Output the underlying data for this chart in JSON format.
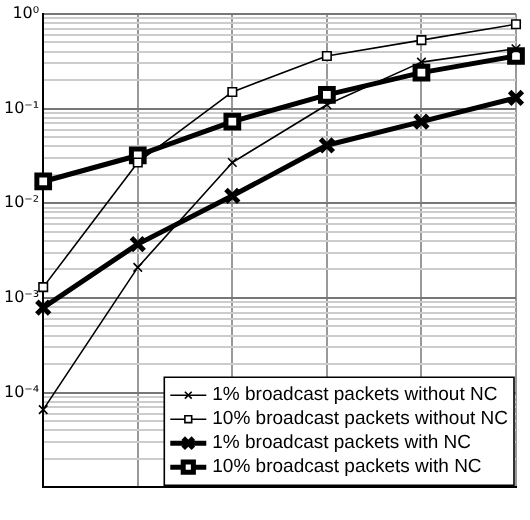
{
  "chart_data": {
    "type": "line",
    "log": "y",
    "categories": [
      null,
      null,
      null,
      null,
      null,
      null
    ],
    "ylim": [
      1e-05,
      1
    ],
    "yticks": [
      {
        "value": 1e-05,
        "label": null
      },
      {
        "value": 2e-05,
        "label": null
      },
      {
        "value": 3e-05,
        "label": null
      },
      {
        "value": 4e-05,
        "label": null
      },
      {
        "value": 5e-05,
        "label": null
      },
      {
        "value": 6e-05,
        "label": null
      },
      {
        "value": 7e-05,
        "label": null
      },
      {
        "value": 8e-05,
        "label": null
      },
      {
        "value": 9e-05,
        "label": null
      },
      {
        "value": 0.0001,
        "label": "10⁻⁴"
      },
      {
        "value": 0.0002,
        "label": null
      },
      {
        "value": 0.0003,
        "label": null
      },
      {
        "value": 0.0004,
        "label": null
      },
      {
        "value": 0.0005,
        "label": null
      },
      {
        "value": 0.0006,
        "label": null
      },
      {
        "value": 0.0007,
        "label": null
      },
      {
        "value": 0.0008,
        "label": null
      },
      {
        "value": 0.0009,
        "label": null
      },
      {
        "value": 0.001,
        "label": "10⁻³"
      },
      {
        "value": 0.002,
        "label": null
      },
      {
        "value": 0.003,
        "label": null
      },
      {
        "value": 0.004,
        "label": null
      },
      {
        "value": 0.005,
        "label": null
      },
      {
        "value": 0.006,
        "label": null
      },
      {
        "value": 0.007,
        "label": null
      },
      {
        "value": 0.008,
        "label": null
      },
      {
        "value": 0.009,
        "label": null
      },
      {
        "value": 0.01,
        "label": "10⁻²"
      },
      {
        "value": 0.02,
        "label": null
      },
      {
        "value": 0.03,
        "label": null
      },
      {
        "value": 0.04,
        "label": null
      },
      {
        "value": 0.05,
        "label": null
      },
      {
        "value": 0.06,
        "label": null
      },
      {
        "value": 0.07,
        "label": null
      },
      {
        "value": 0.08,
        "label": null
      },
      {
        "value": 0.09,
        "label": null
      },
      {
        "value": 0.1,
        "label": "10⁻¹"
      },
      {
        "value": 0.2,
        "label": null
      },
      {
        "value": 0.3,
        "label": null
      },
      {
        "value": 0.4,
        "label": null
      },
      {
        "value": 0.5,
        "label": null
      },
      {
        "value": 0.6,
        "label": null
      },
      {
        "value": 0.7,
        "label": null
      },
      {
        "value": 0.8,
        "label": null
      },
      {
        "value": 0.9,
        "label": null
      },
      {
        "value": 1,
        "label": "10⁰"
      }
    ],
    "grid": true,
    "legend": "bottom right",
    "series": [
      {
        "name": "1% broadcast packets without NC",
        "color": "#000000",
        "marker": "cross",
        "values": [
          6.6e-05,
          0.0021,
          0.027,
          0.11,
          0.31,
          0.43
        ]
      },
      {
        "name": "10% broadcast packets without NC",
        "color": "#000000",
        "marker": "square",
        "values": [
          0.0013,
          0.027,
          0.15,
          0.36,
          0.53,
          0.78
        ]
      },
      {
        "name": "1% broadcast packets with NC",
        "color": "#000000",
        "marker": "cross",
        "values": [
          0.00079,
          0.0037,
          0.012,
          0.041,
          0.073,
          0.13
        ]
      },
      {
        "name": "10% broadcast packets with NC",
        "color": "#000000",
        "marker": "square",
        "values": [
          0.017,
          0.032,
          0.073,
          0.14,
          0.24,
          0.36
        ]
      }
    ]
  }
}
